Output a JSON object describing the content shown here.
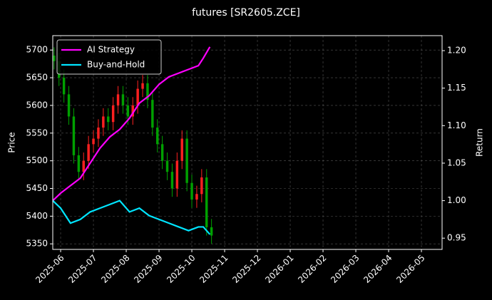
{
  "chart_data": {
    "type": "candlestick",
    "title": "futures [SR2605.ZCE]",
    "ylabel": "Price",
    "y2label": "Return",
    "xlim": [
      -0.24,
      11.63
    ],
    "xticks": [
      {
        "value": 0,
        "label": "2025-06"
      },
      {
        "value": 1,
        "label": "2025-07"
      },
      {
        "value": 2,
        "label": "2025-08"
      },
      {
        "value": 3,
        "label": "2025-09"
      },
      {
        "value": 4,
        "label": "2025-10"
      },
      {
        "value": 5,
        "label": "2025-11"
      },
      {
        "value": 6,
        "label": "2025-12"
      },
      {
        "value": 7,
        "label": "2026-01"
      },
      {
        "value": 8,
        "label": "2026-02"
      },
      {
        "value": 9,
        "label": "2026-03"
      },
      {
        "value": 10,
        "label": "2026-04"
      },
      {
        "value": 11,
        "label": "2026-05"
      }
    ],
    "ylim": [
      5340,
      5726
    ],
    "yticks": [
      5350,
      5400,
      5450,
      5500,
      5550,
      5600,
      5650,
      5700
    ],
    "y2lim": [
      0.935,
      1.22
    ],
    "y2ticks": [
      {
        "value": 0.95,
        "label": "0.95"
      },
      {
        "value": 1.0,
        "label": "1.00"
      },
      {
        "value": 1.05,
        "label": "1.05"
      },
      {
        "value": 1.1,
        "label": "1.10"
      },
      {
        "value": 1.15,
        "label": "1.15"
      },
      {
        "value": 1.2,
        "label": "1.20"
      }
    ],
    "grid": true,
    "legend": "upper left",
    "up_color": "#ff2020",
    "down_color": "#00a000",
    "candles": {
      "x": [
        -0.2,
        -0.05,
        0.1,
        0.25,
        0.4,
        0.55,
        0.7,
        0.85,
        1.0,
        1.15,
        1.3,
        1.45,
        1.6,
        1.75,
        1.9,
        2.05,
        2.2,
        2.35,
        2.5,
        2.65,
        2.8,
        2.95,
        3.1,
        3.25,
        3.4,
        3.55,
        3.7,
        3.85,
        4.0,
        4.15,
        4.3,
        4.45,
        4.6
      ],
      "open": [
        5690,
        5680,
        5650,
        5620,
        5580,
        5510,
        5480,
        5500,
        5530,
        5540,
        5560,
        5580,
        5570,
        5600,
        5620,
        5600,
        5580,
        5600,
        5630,
        5640,
        5610,
        5560,
        5530,
        5500,
        5480,
        5450,
        5500,
        5540,
        5460,
        5430,
        5440,
        5470,
        5380
      ],
      "high": [
        5705,
        5695,
        5665,
        5635,
        5595,
        5525,
        5515,
        5545,
        5555,
        5575,
        5595,
        5595,
        5615,
        5635,
        5635,
        5615,
        5615,
        5645,
        5655,
        5655,
        5625,
        5575,
        5545,
        5515,
        5495,
        5515,
        5555,
        5555,
        5475,
        5455,
        5485,
        5485,
        5395
      ],
      "low": [
        5665,
        5635,
        5605,
        5565,
        5495,
        5465,
        5465,
        5485,
        5515,
        5525,
        5545,
        5555,
        5555,
        5585,
        5585,
        5565,
        5565,
        5585,
        5615,
        5595,
        5545,
        5515,
        5485,
        5465,
        5435,
        5435,
        5485,
        5445,
        5415,
        5415,
        5425,
        5365,
        5350
      ],
      "close": [
        5680,
        5650,
        5620,
        5580,
        5510,
        5480,
        5500,
        5530,
        5540,
        5560,
        5580,
        5570,
        5600,
        5620,
        5600,
        5580,
        5600,
        5630,
        5640,
        5610,
        5560,
        5530,
        5500,
        5480,
        5450,
        5500,
        5540,
        5460,
        5430,
        5440,
        5470,
        5380,
        5365
      ]
    },
    "x": [
      -0.24,
      0.0,
      0.3,
      0.6,
      0.9,
      1.2,
      1.5,
      1.8,
      2.1,
      2.4,
      2.7,
      3.0,
      3.3,
      3.6,
      3.9,
      4.2,
      4.35,
      4.55
    ],
    "series": [
      {
        "name": "AI Strategy",
        "color": "#ff00ff",
        "axis": "y2",
        "values": [
          1.0,
          1.01,
          1.02,
          1.03,
          1.05,
          1.07,
          1.085,
          1.095,
          1.11,
          1.13,
          1.14,
          1.155,
          1.165,
          1.17,
          1.175,
          1.18,
          1.19,
          1.205
        ]
      },
      {
        "name": "Buy-and-Hold",
        "color": "#00e5ff",
        "axis": "y2",
        "values": [
          1.0,
          0.99,
          0.97,
          0.975,
          0.985,
          0.99,
          0.995,
          1.0,
          0.985,
          0.99,
          0.98,
          0.975,
          0.97,
          0.965,
          0.96,
          0.965,
          0.965,
          0.955
        ]
      }
    ]
  }
}
